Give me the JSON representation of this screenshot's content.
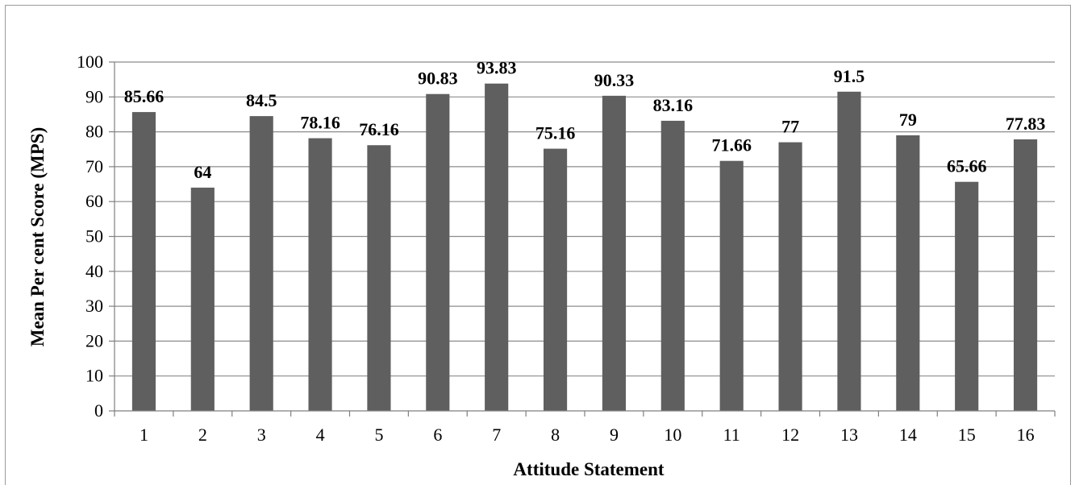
{
  "chart_data": {
    "type": "bar",
    "title": "",
    "xlabel": "Attitude Statement",
    "ylabel": "Mean Per cent Score (MPS)",
    "categories": [
      "1",
      "2",
      "3",
      "4",
      "5",
      "6",
      "7",
      "8",
      "9",
      "10",
      "11",
      "12",
      "13",
      "14",
      "15",
      "16"
    ],
    "values": [
      85.66,
      64,
      84.5,
      78.16,
      76.16,
      90.83,
      93.83,
      75.16,
      90.33,
      83.16,
      71.66,
      77,
      91.5,
      79,
      65.66,
      77.83
    ],
    "data_labels": [
      "85.66",
      "64",
      "84.5",
      "78.16",
      "76.16",
      "90.83",
      "93.83",
      "75.16",
      "90.33",
      "83.16",
      "71.66",
      "77",
      "91.5",
      "79",
      "65.66",
      "77.83"
    ],
    "ylim": [
      0,
      100
    ],
    "yticks": [
      "0",
      "10",
      "20",
      "30",
      "40",
      "50",
      "60",
      "70",
      "80",
      "90",
      "100"
    ],
    "grid": true,
    "legend": "none",
    "colors": {
      "bar": "#5f5f5f",
      "grid": "#8c8c8c",
      "axis": "#7f7f7f"
    }
  }
}
